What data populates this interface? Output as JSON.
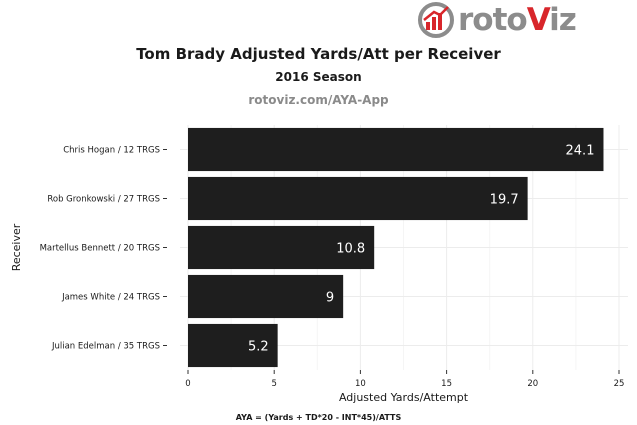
{
  "brand": {
    "prefix": "roto",
    "accent": "V",
    "suffix": "iz",
    "accent_color": "#d8262b",
    "gray_color": "#8c8c8c"
  },
  "header": {
    "title": "Tom Brady Adjusted Yards/Att per Receiver",
    "subtitle": "2016 Season",
    "source": "rotoviz.com/AYA-App"
  },
  "footnote": "AYA = (Yards + TD*20 - INT*45)/ATTS",
  "chart_data": {
    "type": "bar",
    "orientation": "horizontal",
    "categories": [
      "Chris Hogan / 12 TRGS",
      "Rob Gronkowski / 27 TRGS",
      "Martellus Bennett / 20 TRGS",
      "James White / 24 TRGS",
      "Julian Edelman / 35 TRGS"
    ],
    "values": [
      24.1,
      19.7,
      10.8,
      9,
      5.2
    ],
    "value_labels": [
      "24.1",
      "19.7",
      "10.8",
      "9",
      "5.2"
    ],
    "xlabel": "Adjusted Yards/Attempt",
    "ylabel": "Receiver",
    "xlim": [
      0,
      25
    ],
    "xticks": [
      0,
      5,
      10,
      15,
      20,
      25
    ],
    "grid": true,
    "bar_color": "#1e1e1e",
    "label_color": "#ffffff"
  }
}
